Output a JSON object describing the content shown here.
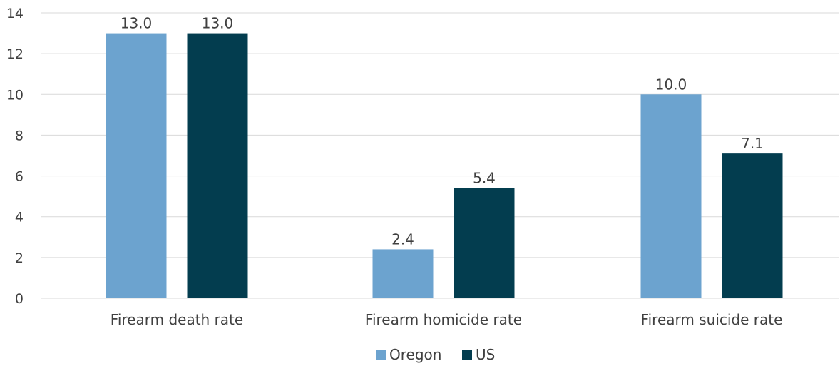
{
  "chart_data": {
    "type": "bar",
    "categories": [
      "Firearm death rate",
      "Firearm homicide rate",
      "Firearm suicide rate"
    ],
    "series": [
      {
        "name": "Oregon",
        "values": [
          13.0,
          2.4,
          10.0
        ],
        "labels": [
          "13.0",
          "2.4",
          "10.0"
        ],
        "color": "#6ca3cf"
      },
      {
        "name": "US",
        "values": [
          13.0,
          5.4,
          7.1
        ],
        "labels": [
          "13.0",
          "5.4",
          "7.1"
        ],
        "color": "#033d4f"
      }
    ],
    "y_ticks": [
      "0",
      "2",
      "4",
      "6",
      "8",
      "10",
      "12",
      "14"
    ],
    "ylim": [
      0,
      14
    ],
    "grid": true,
    "legend_position": "bottom",
    "title": "",
    "xlabel": "",
    "ylabel": ""
  }
}
